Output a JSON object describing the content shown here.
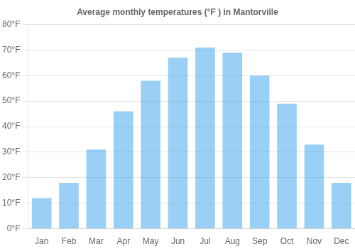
{
  "chart_data": {
    "type": "bar",
    "title": "Average monthly temperatures (°F ) in Mantorville",
    "categories": [
      "Jan",
      "Feb",
      "Mar",
      "Apr",
      "May",
      "Jun",
      "Jul",
      "Aug",
      "Sep",
      "Oct",
      "Nov",
      "Dec"
    ],
    "values": [
      12,
      18,
      31,
      46,
      58,
      67,
      71,
      69,
      60,
      49,
      33,
      18
    ],
    "ylim": [
      0,
      80
    ],
    "yticks": [
      {
        "value": 0,
        "label": "0°F"
      },
      {
        "value": 10,
        "label": "10°F"
      },
      {
        "value": 20,
        "label": "20°F"
      },
      {
        "value": 30,
        "label": "30°F"
      },
      {
        "value": 40,
        "label": "40°F"
      },
      {
        "value": 50,
        "label": "50°F"
      },
      {
        "value": 60,
        "label": "60°F"
      },
      {
        "value": 70,
        "label": "70°F"
      },
      {
        "value": 80,
        "label": "80°F"
      }
    ],
    "grid": true
  }
}
